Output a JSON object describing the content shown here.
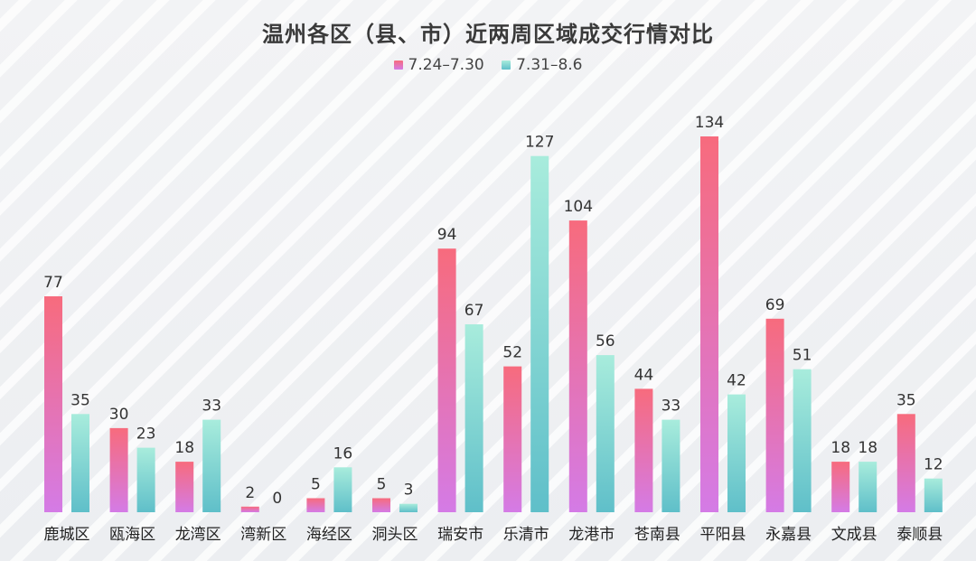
{
  "chart_data": {
    "type": "bar",
    "title": "温州各区（县、市）近两周区域成交行情对比",
    "categories": [
      "鹿城区",
      "瓯海区",
      "龙湾区",
      "湾新区",
      "海经区",
      "洞头区",
      "瑞安市",
      "乐清市",
      "龙港市",
      "苍南县",
      "平阳县",
      "永嘉县",
      "文成县",
      "泰顺县"
    ],
    "series": [
      {
        "name": "7.24–7.30",
        "values": [
          77,
          30,
          18,
          2,
          5,
          5,
          94,
          52,
          104,
          44,
          134,
          69,
          18,
          35
        ],
        "color_top": "#f76b7d",
        "color_bottom": "#d47be6"
      },
      {
        "name": "7.31–8.6",
        "values": [
          35,
          23,
          33,
          0,
          16,
          3,
          67,
          127,
          56,
          33,
          42,
          51,
          18,
          12
        ],
        "color_top": "#a8ecdc",
        "color_bottom": "#5fbfc9"
      }
    ],
    "ylim": [
      0,
      134
    ],
    "legend": "top-center",
    "grid": false
  }
}
